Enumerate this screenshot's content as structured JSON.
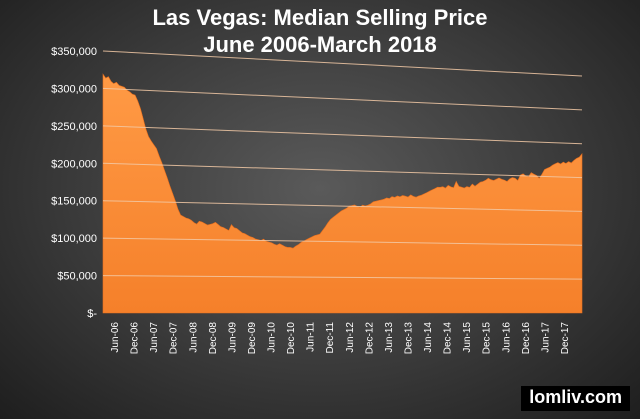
{
  "chart_data": {
    "type": "area",
    "title": "Las Vegas: Median Selling Price",
    "subtitle": "June 2006-March 2018",
    "xlabel": "",
    "ylabel": "",
    "ylim": [
      0,
      350000
    ],
    "y_ticks": [
      "$-",
      "$50,000",
      "$100,000",
      "$150,000",
      "$200,000",
      "$250,000",
      "$300,000",
      "$350,000"
    ],
    "x_tick_labels": [
      "Jun-06",
      "Dec-06",
      "Jun-07",
      "Dec-07",
      "Jun-08",
      "Dec-08",
      "Jun-09",
      "Dec-09",
      "Jun-10",
      "Dec-10",
      "Jun-11",
      "Dec-11",
      "Jun-12",
      "Dec-12",
      "Jun-13",
      "Dec-13",
      "Jun-14",
      "Dec-14",
      "Jun-15",
      "Dec-15",
      "Jun-16",
      "Dec-16",
      "Jun-17",
      "Dec-17"
    ],
    "grid": true,
    "legend": "none",
    "fill_color": "#f5802a",
    "series": [
      {
        "values": [
          319000,
          314000,
          316000,
          310000,
          307000,
          309000,
          305000,
          304000,
          303000,
          299000,
          297000,
          294000,
          293000,
          285000,
          275000,
          262000,
          248000,
          238000,
          232000,
          227000,
          222000,
          212000,
          203000,
          193000,
          183000,
          172000,
          162000,
          152000,
          141000,
          133000,
          131000,
          129000,
          128000,
          126000,
          123000,
          121000,
          125000,
          124000,
          122000,
          120000,
          121000,
          122000,
          124000,
          121000,
          118000,
          117000,
          115000,
          113000,
          121000,
          117000,
          116000,
          113000,
          110000,
          109000,
          107000,
          105000,
          104000,
          102000,
          101000,
          100000,
          102000,
          99000,
          98000,
          97000,
          95000,
          94000,
          96000,
          94000,
          92000,
          91000,
          91000,
          90000,
          93000,
          95000,
          98000,
          100000,
          102000,
          104000,
          106000,
          108000,
          109000,
          110000,
          115000,
          120000,
          126000,
          131000,
          134000,
          137000,
          140000,
          143000,
          145000,
          147000,
          150000,
          151000,
          152000,
          150000,
          149000,
          152000,
          151000,
          152000,
          154000,
          157000,
          158000,
          159000,
          160000,
          161000,
          163000,
          162000,
          165000,
          164000,
          166000,
          165000,
          167000,
          166000,
          165000,
          168000,
          166000,
          165000,
          167000,
          168000,
          170000,
          172000,
          174000,
          176000,
          178000,
          180000,
          180000,
          181000,
          179000,
          183000,
          181000,
          180000,
          189000,
          182000,
          181000,
          180000,
          182000,
          181000,
          186000,
          183000,
          186000,
          189000,
          190000,
          192000,
          195000,
          193000,
          192000,
          194000,
          196000,
          194000,
          193000,
          191000,
          195000,
          197000,
          196000,
          193000,
          201000,
          203000,
          200000,
          199000,
          205000,
          203000,
          201000,
          197000,
          203000,
          210000,
          212000,
          214000,
          217000,
          219000,
          221000,
          219000,
          222000,
          220000,
          223000,
          221000,
          225000,
          228000,
          230000,
          235000
        ]
      }
    ]
  },
  "watermark": "lomliv.com"
}
